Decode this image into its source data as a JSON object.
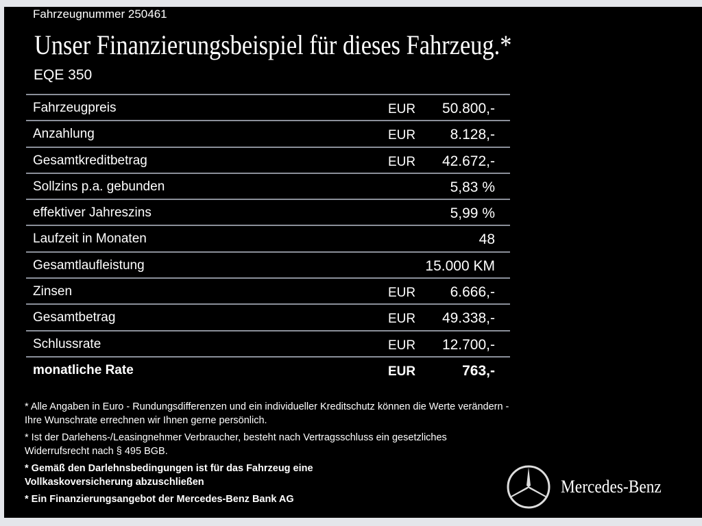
{
  "vehicle_number": "Fahrzeugnummer 250461",
  "title": "Unser Finanzierungsbeispiel für dieses Fahrzeug.*",
  "model": "EQE 350",
  "rows": [
    {
      "label": "Fahrzeugpreis",
      "currency": "EUR",
      "value": "50.800,-"
    },
    {
      "label": "Anzahlung",
      "currency": "EUR",
      "value": "8.128,-"
    },
    {
      "label": "Gesamtkreditbetrag",
      "currency": "EUR",
      "value": "42.672,-"
    },
    {
      "label": "Sollzins p.a. gebunden",
      "currency": "",
      "value": "5,83 %"
    },
    {
      "label": "effektiver Jahreszins",
      "currency": "",
      "value": "5,99 %"
    },
    {
      "label": "Laufzeit in Monaten",
      "currency": "",
      "value": "48"
    },
    {
      "label": "Gesamtlaufleistung",
      "currency": "",
      "value": "15.000 KM"
    },
    {
      "label": "Zinsen",
      "currency": "EUR",
      "value": "6.666,-"
    },
    {
      "label": "Gesamtbetrag",
      "currency": "EUR",
      "value": "49.338,-"
    },
    {
      "label": "Schlussrate",
      "currency": "EUR",
      "value": "12.700,-"
    },
    {
      "label": "monatliche Rate",
      "currency": "EUR",
      "value": "763,-"
    }
  ],
  "notes": [
    "* Alle Angaben in Euro - Rundungsdifferenzen und ein individueller Kreditschutz können die Werte verändern - Ihre Wunschrate errechnen wir Ihnen gerne persönlich.",
    "* Ist der Darlehens-/Leasingnehmer Verbraucher, besteht nach Vertragsschluss ein gesetzliches Widerrufsrecht nach § 495 BGB.",
    "* Gemäß den Darlehnsbedingungen ist für das Fahrzeug eine Vollkaskoversicherung abzuschließen",
    "* Ein Finanzierungsangebot der Mercedes-Benz Bank AG"
  ],
  "brand": "Mercedes-Benz",
  "logo_icon": "mercedes-star-icon"
}
